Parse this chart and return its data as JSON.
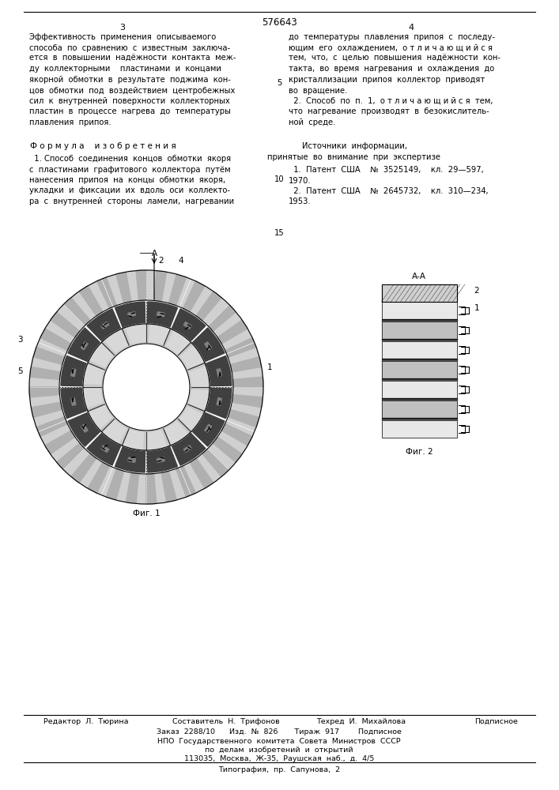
{
  "patent_number": "576643",
  "page_numbers": [
    "3",
    "4"
  ],
  "bg_color": "#ffffff",
  "text_color": "#000000",
  "col1_text": [
    "Эффективность  применения  описываемого",
    "способа  по  сравнению  с  известным  заключа-",
    "ется  в  повышении  надежности  контакта  меж-",
    "ду  коллекторными    пластинами  и  концами",
    "якорной  обмотки  в  результате  поджима  кон-",
    "цов  обмотки  под  воздействием  центробежных",
    "сил  к  внутренней  поверхности  коллекторных",
    "пластин  в  процессе  нагрева  до  температуры",
    "плавления  припоя."
  ],
  "formula_title": "Ф о р м у л а    и з о б р е т е н и я",
  "formula_text": [
    "  1. Способ  соединения  концов  обмотки  якоря",
    "с  пластинами  графитового  коллектора  путем",
    "нанесения  припоя  на  концы  обмотки  якоря,",
    "укладки  и  фиксации  их  вдоль  оси  коллекто-",
    "ра  с  внутренней  стороны  ламели,  нагревании"
  ],
  "col2_right_text": [
    "до  температуры  плавления  припоя  с  последу-",
    "ющим  его  охлаждением,  о т л и ч а ю щ и й с я",
    "тем,  что,  с  целью  повышения  надежности  кон-",
    "такта,  во  время  нагревания  и  охлаждения  до",
    "кристаллизации  припоя  коллектор  приводят",
    "во  вращение.",
    "  2.  Способ  по  п.  1,  о т л и ч а ю щ и й с я  тем,",
    "что  нагревание  производят  в  безокислитель-",
    "ной  среде."
  ],
  "sources_title": "Источники  информации,",
  "sources_subtitle": "принятые  во  внимание  при  экспертизе",
  "sources": [
    "  1.  Патент  США    №  3525149,    кл.  29—59,7,",
    "1970.",
    "  2.  Патент  США    №  2645732,    кл.  310–234,",
    "1953."
  ],
  "line_numbers_left": [
    "5",
    "10",
    "15"
  ],
  "fig1_label": "Фиг. 1",
  "fig2_label": "Фиг. 2",
  "footer_row1": [
    "Редактор  Л.  Тюрина",
    "Составитель  Н.  Трифонов",
    "Техред  И.  Михайлова",
    "Подписное"
  ],
  "footer_row2": "Заказ  2288/10      Изд.  №  826       Тираж  917        Подписное",
  "footer_row3": "НПО  Государственного  комитета  Совета  Министров  СССР",
  "footer_row4": "по  делам  изобретений  и  открытий",
  "footer_row5": "113035,  Москва,  Ж-35,  Раушская  наб.,  д.  4/5",
  "footer_row6": "Типография,  пр.  Сапунова,  2"
}
